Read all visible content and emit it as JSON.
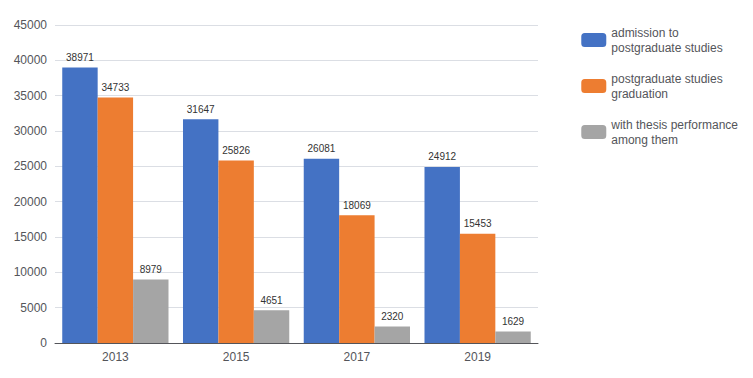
{
  "chart_data": {
    "type": "bar",
    "categories": [
      "2013",
      "2015",
      "2017",
      "2019"
    ],
    "series": [
      {
        "name": "admission to\npostgraduate studies",
        "color": "#4472C4",
        "values": [
          38971,
          31647,
          26081,
          24912
        ]
      },
      {
        "name": "postgraduate studies\ngraduation",
        "color": "#ED7D31",
        "values": [
          34733,
          25826,
          18069,
          15453
        ]
      },
      {
        "name": "with thesis performance\namong them",
        "color": "#A5A5A5",
        "values": [
          8979,
          4651,
          2320,
          1629
        ]
      }
    ],
    "ylim": [
      0,
      45000
    ],
    "yticks": [
      0,
      5000,
      10000,
      15000,
      20000,
      25000,
      30000,
      35000,
      40000,
      45000
    ],
    "grid": true,
    "legend": "right",
    "data_labels": true
  }
}
